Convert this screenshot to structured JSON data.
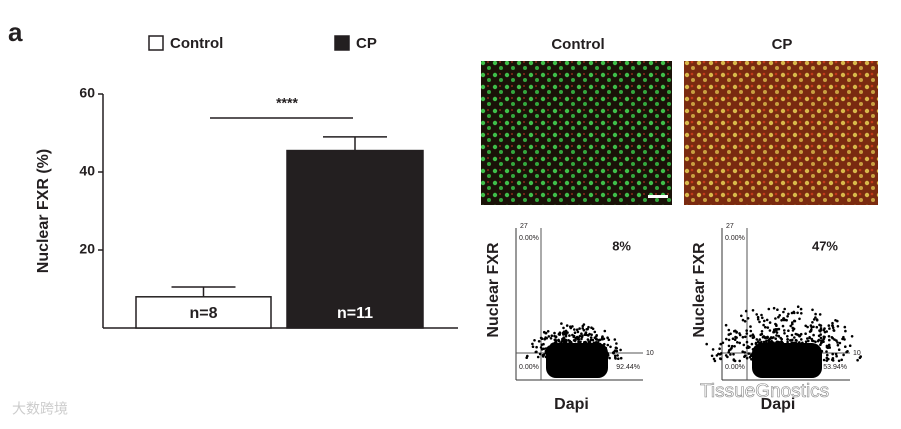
{
  "panel_label": "a",
  "chart_data": {
    "type": "bar",
    "y_label": "Nuclear FXR (%)",
    "categories": [
      "Control",
      "CP"
    ],
    "values": [
      8,
      45.5
    ],
    "errors": [
      2.5,
      3.5
    ],
    "colors": [
      "#ffffff",
      "#231f20"
    ],
    "annotations": [
      "n=8",
      "n=11"
    ],
    "significance": "****",
    "ylim": [
      0,
      60
    ],
    "yticks": [
      20,
      40,
      60
    ],
    "legend": "top"
  },
  "images": {
    "titles": [
      "Control",
      "CP"
    ]
  },
  "flow_plots": [
    {
      "y_label": "Nuclear FXR",
      "x_label": "Dapi",
      "percent": "8%",
      "top_tick": "27",
      "upper_left": "0.00%",
      "lower_left": "0.00%",
      "lower_right": "92.44%",
      "right_tick": "10"
    },
    {
      "y_label": "Nuclear FXR",
      "x_label": "Dapi",
      "percent": "47%",
      "top_tick": "27",
      "upper_left": "0.00%",
      "lower_left": "0.00%",
      "lower_right": "53.94%",
      "right_tick": "10"
    }
  ],
  "watermarks": [
    "大数跨境",
    "TissueGnostics"
  ]
}
